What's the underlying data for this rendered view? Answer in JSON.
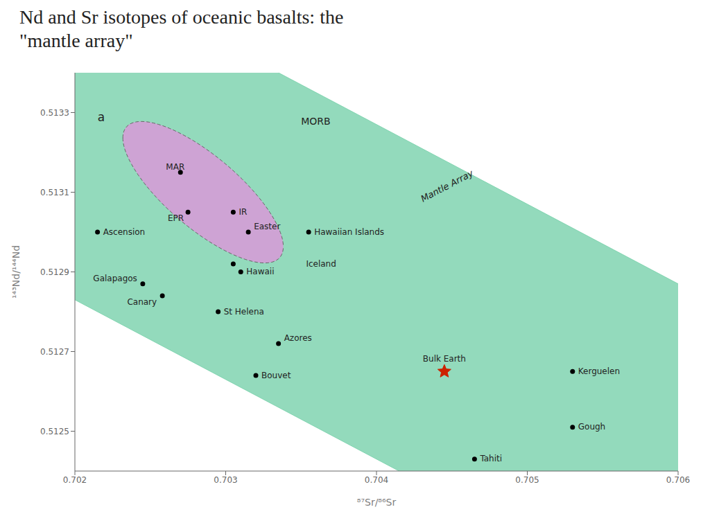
{
  "chart_data": {
    "type": "scatter",
    "title": "Nd and Sr isotopes of oceanic basalts: the \"mantle array\"",
    "x_label": "⁸⁷Sr/⁸⁶Sr",
    "y_label": "¹⁴³Nd/¹⁴⁴Nd",
    "xlim": [
      0.702,
      0.706
    ],
    "ylim": [
      0.5124,
      0.5134
    ],
    "xticks": [
      0.702,
      0.703,
      0.704,
      0.705,
      0.706
    ],
    "yticks": [
      0.5125,
      0.5127,
      0.5129,
      0.5131,
      0.5133
    ],
    "grid": false,
    "series": [
      {
        "marker": "circle",
        "color": "#000000",
        "x": [
          0.7027,
          0.70275,
          0.70305,
          0.70305,
          0.70215,
          0.70315,
          0.70355,
          0.70245,
          0.70258,
          0.7031,
          0.70295,
          0.70335,
          0.7032,
          0.7053,
          0.7053,
          0.70465
        ],
        "values": [
          0.51315,
          0.51305,
          0.51305,
          0.51292,
          0.513,
          0.513,
          0.513,
          0.51287,
          0.51284,
          0.5129,
          0.5128,
          0.51272,
          0.51264,
          0.51265,
          0.51251,
          0.51243
        ],
        "labels": [
          "MAR",
          "EPR",
          "IR",
          "Iceland",
          "Ascension",
          "Easter",
          "Hawaiian Islands",
          "Galapagos",
          "Canary",
          "Hawaii",
          "St Helena",
          "Azores",
          "Bouvet",
          "Kerguelen",
          "Gough",
          "Tahiti"
        ]
      },
      {
        "marker": "star",
        "color": "#cc2200",
        "x": [
          0.70445
        ],
        "values": [
          0.51265
        ],
        "labels": [
          "Bulk Earth"
        ]
      }
    ],
    "regions": [
      {
        "shape": "band",
        "color": "#80d4b0",
        "x": [
          0.702,
          0.706
        ],
        "values": [
          0.51325,
          0.51245
        ],
        "half_width": 0.00042
      },
      {
        "shape": "ellipse",
        "color": "#d899d8",
        "center": [
          0.70285,
          0.5131
        ],
        "width": 0.0011,
        "height": 0.00022,
        "angle": -15
      }
    ],
    "annotations": [
      {
        "text": "MORB",
        "x": 0.7035,
        "y": 0.51327
      },
      {
        "text": "Mantle Array",
        "x": 0.7043,
        "y": 0.51308
      },
      {
        "text": "a",
        "x": 0.70215,
        "y": 0.5133
      }
    ]
  }
}
